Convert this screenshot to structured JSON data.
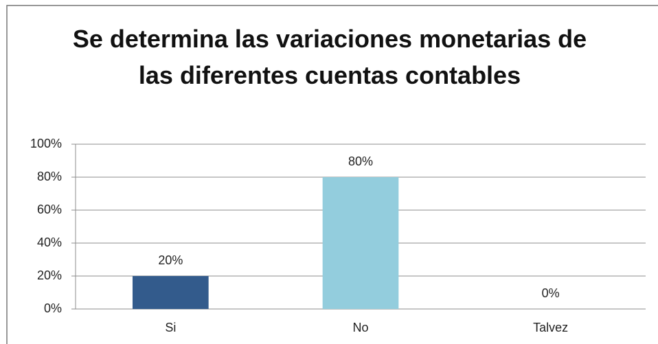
{
  "chart_data": {
    "type": "bar",
    "title": "Se determina las variaciones monetarias de las diferentes cuentas contables",
    "categories": [
      "Si",
      "No",
      "Talvez"
    ],
    "values": [
      20,
      80,
      0
    ],
    "value_labels": [
      "20%",
      "80%",
      "0%"
    ],
    "colors": [
      "#335b8c",
      "#93cddd",
      null
    ],
    "ylim": [
      0,
      100
    ],
    "yticks": [
      {
        "value": 0,
        "label": "0%"
      },
      {
        "value": 20,
        "label": "20%"
      },
      {
        "value": 40,
        "label": "40%"
      },
      {
        "value": 60,
        "label": "60%"
      },
      {
        "value": 80,
        "label": "80%"
      },
      {
        "value": 100,
        "label": "100%"
      }
    ],
    "grid": true
  }
}
